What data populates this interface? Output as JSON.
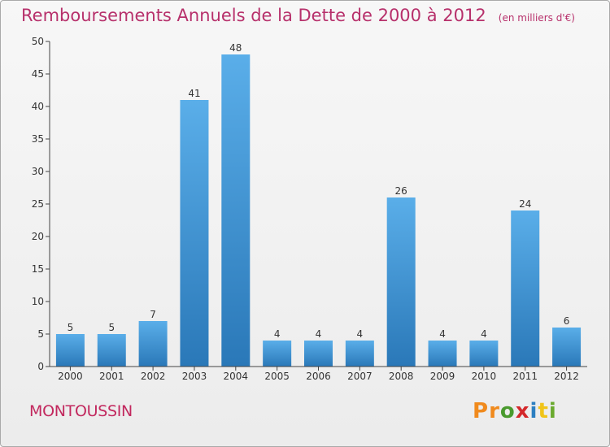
{
  "header": {
    "title": "Remboursements Annuels de la Dette de 2000 à 2012",
    "unit": "(en milliers d'€)"
  },
  "footer": {
    "commune": "MONTOUSSIN",
    "brand": "Proxiti",
    "brand_colors": [
      "#f08a1d",
      "#f08a1d",
      "#4a9a2e",
      "#d4282b",
      "#2c7fc1",
      "#f0c419",
      "#6aaa2e"
    ]
  },
  "colors": {
    "title": "#b7306b",
    "bar_top": "#5aaee9",
    "bar_bottom": "#2a78b8",
    "axis": "#444444",
    "text": "#333333"
  },
  "chart_data": {
    "type": "bar",
    "title": "Remboursements Annuels de la Dette de 2000 à 2012",
    "subtitle": "(en milliers d'€)",
    "categories": [
      "2000",
      "2001",
      "2002",
      "2003",
      "2004",
      "2005",
      "2006",
      "2007",
      "2008",
      "2009",
      "2010",
      "2011",
      "2012"
    ],
    "values": [
      5,
      5,
      7,
      41,
      48,
      4,
      4,
      4,
      26,
      4,
      4,
      24,
      6
    ],
    "data_labels": [
      "5",
      "5",
      "7",
      "41",
      "48",
      "4",
      "4",
      "4",
      "26",
      "4",
      "4",
      "24",
      "6"
    ],
    "yticks": [
      0,
      5,
      10,
      15,
      20,
      25,
      30,
      35,
      40,
      45,
      50
    ],
    "ylim": [
      0,
      50
    ],
    "grid": false,
    "legend": "none"
  }
}
